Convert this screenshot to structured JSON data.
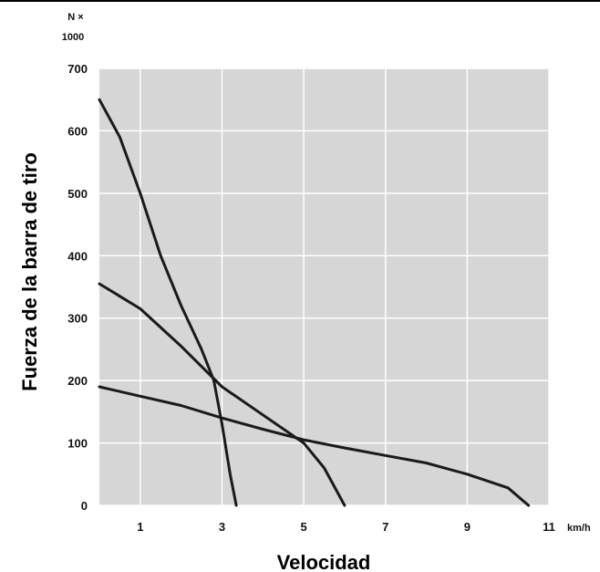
{
  "chart_data": {
    "type": "line",
    "xlabel": "Velocidad",
    "ylabel": "Fuerza de la barra de tiro",
    "x_unit": "km/h",
    "y_unit_line1": "N ×",
    "y_unit_line2": "1000",
    "xlim": [
      0,
      11
    ],
    "ylim": [
      0,
      700
    ],
    "x_ticks": [
      1,
      3,
      5,
      7,
      9,
      11
    ],
    "y_ticks": [
      0,
      100,
      200,
      300,
      400,
      500,
      600,
      700
    ],
    "grid": true,
    "background": "#d6d6d6",
    "line_color": "#1a1a1a",
    "series": [
      {
        "x": [
          0,
          0.5,
          1.0,
          1.5,
          2.0,
          2.5,
          2.8,
          3.0,
          3.2,
          3.35
        ],
        "y": [
          650,
          590,
          500,
          400,
          320,
          250,
          200,
          130,
          50,
          0
        ]
      },
      {
        "x": [
          0,
          1.0,
          2.0,
          3.0,
          4.0,
          5.0,
          5.5,
          6.0
        ],
        "y": [
          355,
          315,
          255,
          190,
          145,
          100,
          60,
          0
        ]
      },
      {
        "x": [
          0,
          1.0,
          2.0,
          3.0,
          4.0,
          5.0,
          6.0,
          7.0,
          8.0,
          9.0,
          10.0,
          10.5
        ],
        "y": [
          190,
          175,
          160,
          140,
          122,
          105,
          92,
          80,
          68,
          50,
          28,
          0
        ]
      }
    ]
  }
}
